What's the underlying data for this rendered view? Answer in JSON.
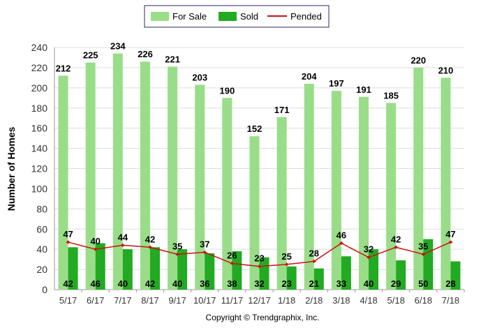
{
  "chart_data": {
    "type": "bar",
    "categories": [
      "5/17",
      "6/17",
      "7/17",
      "8/17",
      "9/17",
      "10/17",
      "11/17",
      "12/17",
      "1/18",
      "2/18",
      "3/18",
      "4/18",
      "5/18",
      "6/18",
      "7/18"
    ],
    "series": [
      {
        "name": "For Sale",
        "kind": "bar",
        "color": "#99dd88",
        "values": [
          212,
          225,
          234,
          226,
          221,
          203,
          190,
          152,
          171,
          204,
          197,
          191,
          185,
          220,
          210
        ]
      },
      {
        "name": "Sold",
        "kind": "bar",
        "color": "#22aa22",
        "values": [
          42,
          46,
          40,
          42,
          40,
          36,
          38,
          32,
          23,
          21,
          33,
          40,
          29,
          50,
          28
        ]
      },
      {
        "name": "Pended",
        "kind": "line",
        "color": "#cc1111",
        "values": [
          47,
          40,
          44,
          42,
          35,
          37,
          26,
          23,
          25,
          28,
          46,
          32,
          42,
          35,
          47
        ]
      }
    ],
    "ylabel": "Number of Homes",
    "xlabel": "",
    "ylim": [
      0,
      240
    ],
    "yticks": [
      0,
      20,
      40,
      60,
      80,
      100,
      120,
      140,
      160,
      180,
      200,
      220,
      240
    ],
    "grid": "horizontal",
    "legend": "top-center",
    "copyright": "Copyright © Trendgraphix, Inc."
  }
}
